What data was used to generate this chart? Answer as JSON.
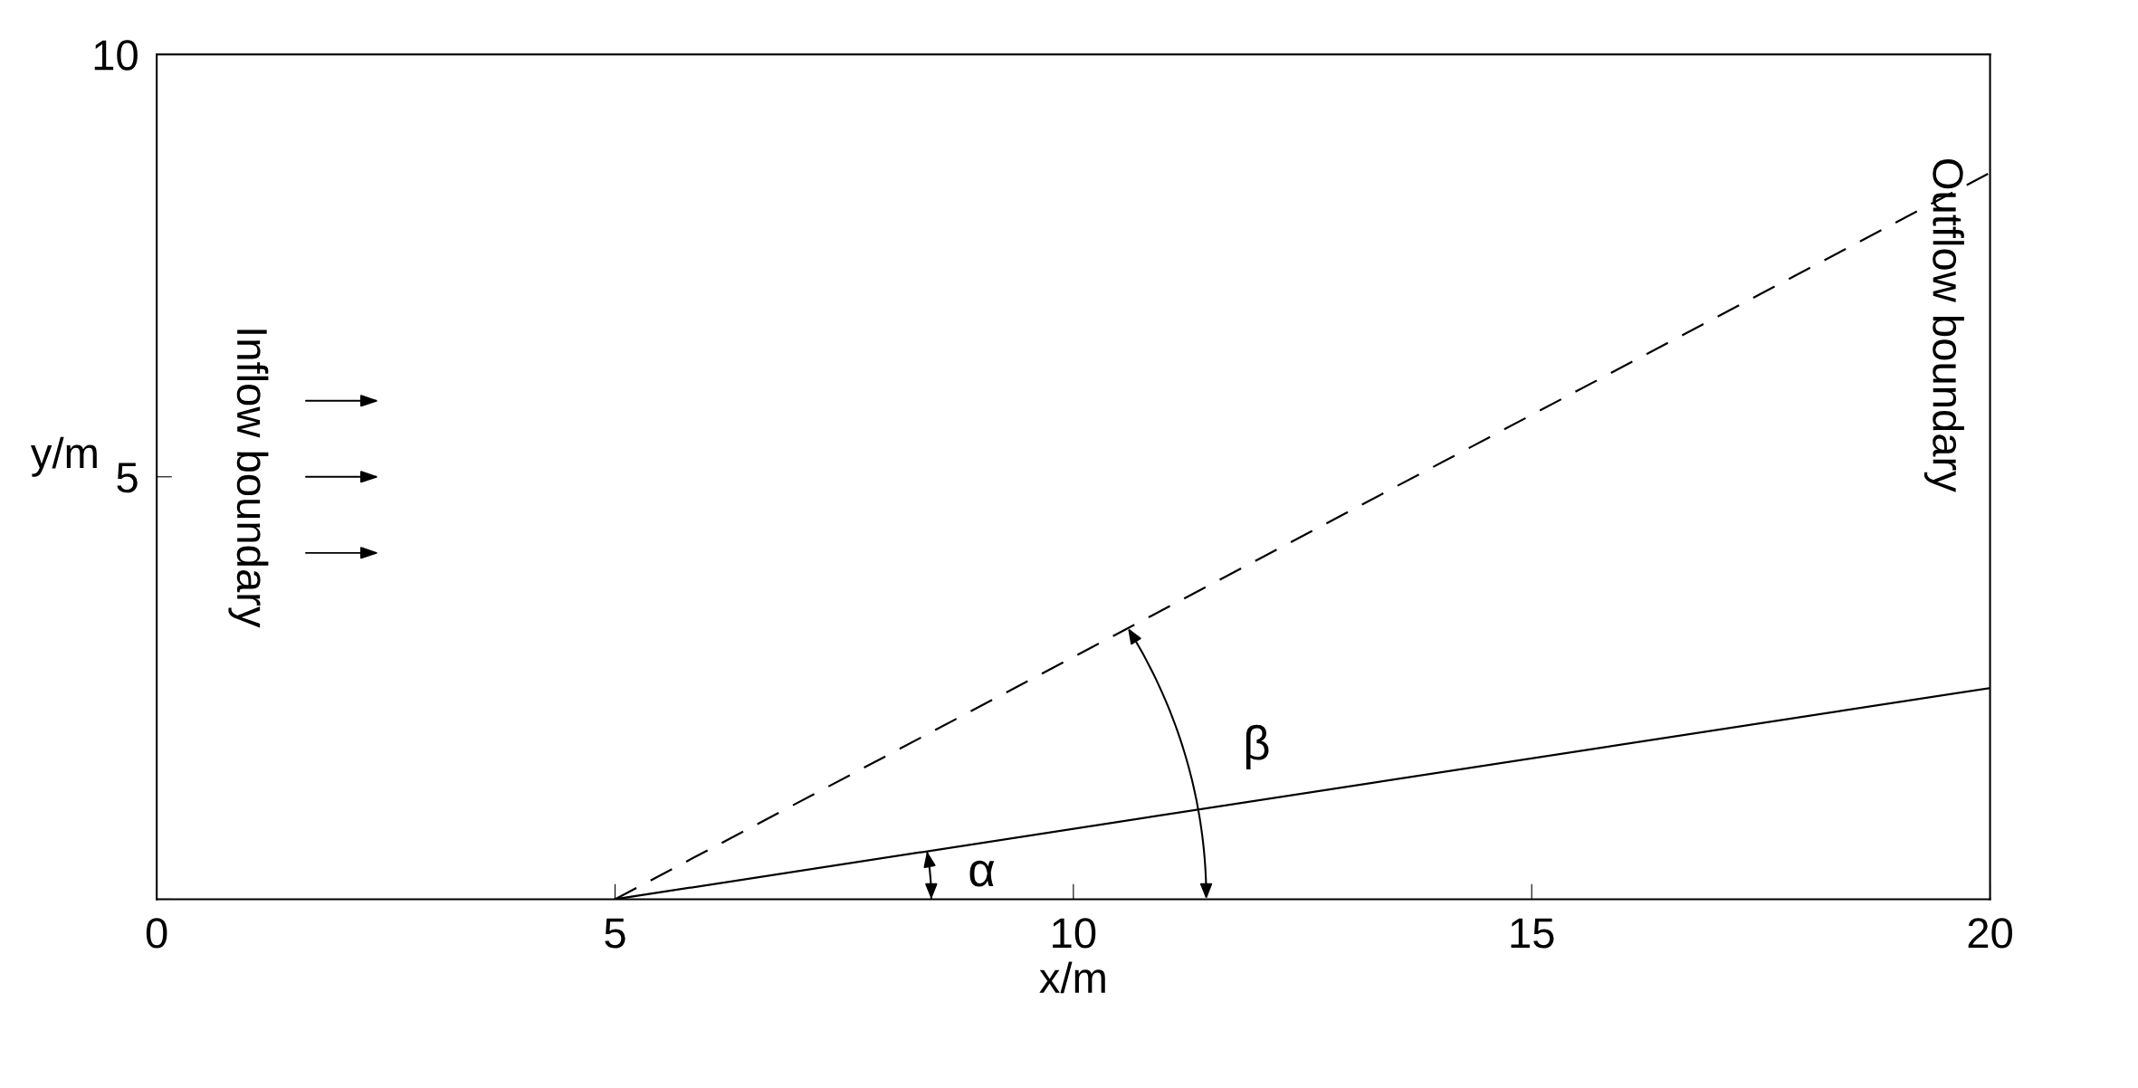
{
  "chart_data": {
    "type": "line",
    "xlabel": "x/m",
    "ylabel": "y/m",
    "xlim": [
      0,
      20
    ],
    "ylim": [
      0,
      10
    ],
    "xticks": [
      0,
      5,
      10,
      15,
      20
    ],
    "yticks": [
      {
        "value": 0,
        "label": null
      },
      5,
      10
    ],
    "grid": false,
    "x": [
      5,
      20
    ],
    "legend": false,
    "marker": "none",
    "series": [
      {
        "color": "#000000",
        "line_style": "solid",
        "values": [
          0,
          2.5
        ]
      },
      {
        "color": "#000000",
        "line_style": "dashed",
        "values": [
          0,
          8.6
        ]
      }
    ],
    "annotations": [
      "Inflow boundary",
      "Outflow boundary",
      "α",
      "β"
    ]
  }
}
